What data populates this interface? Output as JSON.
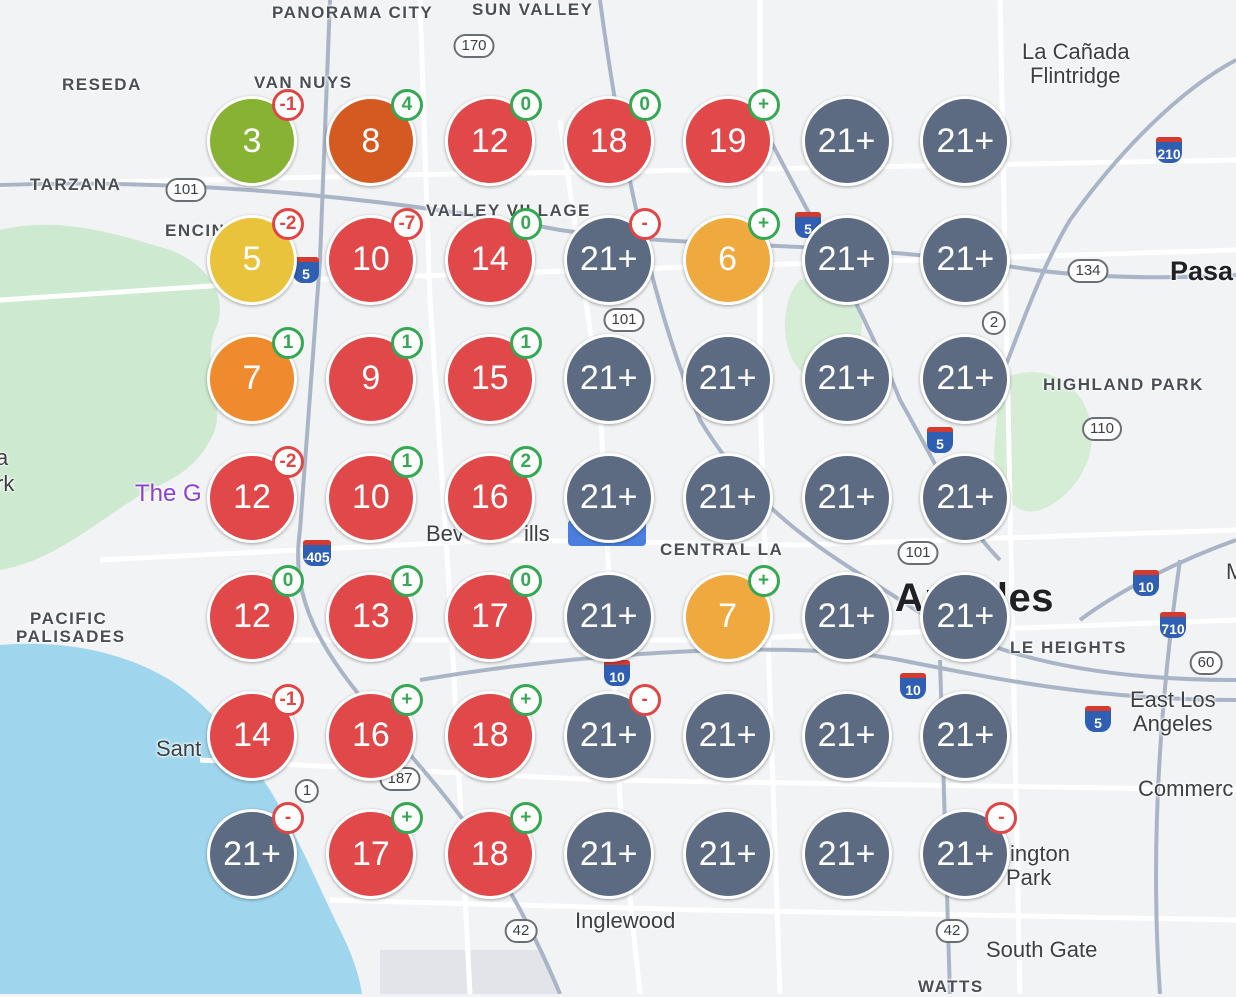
{
  "colors": {
    "water": "#9fd6ee",
    "park": "#cde9cf",
    "green": "#88b233",
    "dark_orange": "#d45a21",
    "red": "#e0484a",
    "yellow": "#e8c33b",
    "orange": "#f0a93e",
    "deep_orange": "#ef8a2e",
    "slate": "#5d6b82",
    "badge_red": "#e04646",
    "badge_green": "#34a853"
  },
  "place_labels": {
    "panorama_city": "PANORAMA CITY",
    "sun_valley": "SUN VALLEY",
    "reseda": "RESEDA",
    "van_nuys": "VAN NUYS",
    "tarzana": "TARZANA",
    "encino": "ENCIN",
    "la_canada": "La Cañada",
    "flintridge": "Flintridge",
    "valley_village": "VALLEY VILLAGE",
    "pasadena": "Pasa",
    "highland_park": "HIGHLAND PARK",
    "the_getty": "The G",
    "beverly_hills": "Bev",
    "hills": "ills",
    "central_la": "CENTRAL LA",
    "los_angeles": "s Angeles",
    "pacific": "PACIFIC",
    "palisades": "PALISADES",
    "le_heights": "LE HEIGHTS",
    "east_los": "East Los",
    "angeles": "Angeles",
    "santa": "Sant",
    "commerce": "Commerc",
    "inglewood": "Inglewood",
    "ington": "ington",
    "park": "Park",
    "south_gate": "South Gate",
    "watts": "WATTS",
    "edge_left_1": "a",
    "edge_left_2": "rk",
    "edge_right_1": "M"
  },
  "route_shields": {
    "state": [
      "170",
      "101",
      "101",
      "134",
      "2",
      "110",
      "101",
      "60",
      "1",
      "187",
      "42",
      "42"
    ],
    "interstate": [
      "5",
      "5",
      "405",
      "5",
      "405",
      "10",
      "10",
      "10",
      "710",
      "5",
      "210"
    ]
  },
  "clusters": [
    [
      {
        "count": "3",
        "color": "green",
        "badge": "-1",
        "badge_color": "badge_red"
      },
      {
        "count": "8",
        "color": "dark_orange",
        "badge": "4",
        "badge_color": "badge_green"
      },
      {
        "count": "12",
        "color": "red",
        "badge": "0",
        "badge_color": "badge_green"
      },
      {
        "count": "18",
        "color": "red",
        "badge": "0",
        "badge_color": "badge_green"
      },
      {
        "count": "19",
        "color": "red",
        "badge": "+",
        "badge_color": "badge_green"
      },
      {
        "count": "21+",
        "color": "slate",
        "badge": "",
        "badge_color": ""
      },
      {
        "count": "21+",
        "color": "slate",
        "badge": "",
        "badge_color": ""
      }
    ],
    [
      {
        "count": "5",
        "color": "yellow",
        "badge": "-2",
        "badge_color": "badge_red"
      },
      {
        "count": "10",
        "color": "red",
        "badge": "-7",
        "badge_color": "badge_red"
      },
      {
        "count": "14",
        "color": "red",
        "badge": "0",
        "badge_color": "badge_green"
      },
      {
        "count": "21+",
        "color": "slate",
        "badge": "-",
        "badge_color": "badge_red"
      },
      {
        "count": "6",
        "color": "orange",
        "badge": "+",
        "badge_color": "badge_green"
      },
      {
        "count": "21+",
        "color": "slate",
        "badge": "",
        "badge_color": ""
      },
      {
        "count": "21+",
        "color": "slate",
        "badge": "",
        "badge_color": ""
      }
    ],
    [
      {
        "count": "7",
        "color": "deep_orange",
        "badge": "1",
        "badge_color": "badge_green"
      },
      {
        "count": "9",
        "color": "red",
        "badge": "1",
        "badge_color": "badge_green"
      },
      {
        "count": "15",
        "color": "red",
        "badge": "1",
        "badge_color": "badge_green"
      },
      {
        "count": "21+",
        "color": "slate",
        "badge": "",
        "badge_color": ""
      },
      {
        "count": "21+",
        "color": "slate",
        "badge": "",
        "badge_color": ""
      },
      {
        "count": "21+",
        "color": "slate",
        "badge": "",
        "badge_color": ""
      },
      {
        "count": "21+",
        "color": "slate",
        "badge": "",
        "badge_color": ""
      }
    ],
    [
      {
        "count": "12",
        "color": "red",
        "badge": "-2",
        "badge_color": "badge_red"
      },
      {
        "count": "10",
        "color": "red",
        "badge": "1",
        "badge_color": "badge_green"
      },
      {
        "count": "16",
        "color": "red",
        "badge": "2",
        "badge_color": "badge_green"
      },
      {
        "count": "21+",
        "color": "slate",
        "badge": "",
        "badge_color": ""
      },
      {
        "count": "21+",
        "color": "slate",
        "badge": "",
        "badge_color": ""
      },
      {
        "count": "21+",
        "color": "slate",
        "badge": "",
        "badge_color": ""
      },
      {
        "count": "21+",
        "color": "slate",
        "badge": "",
        "badge_color": ""
      }
    ],
    [
      {
        "count": "12",
        "color": "red",
        "badge": "0",
        "badge_color": "badge_green"
      },
      {
        "count": "13",
        "color": "red",
        "badge": "1",
        "badge_color": "badge_green"
      },
      {
        "count": "17",
        "color": "red",
        "badge": "0",
        "badge_color": "badge_green"
      },
      {
        "count": "21+",
        "color": "slate",
        "badge": "",
        "badge_color": ""
      },
      {
        "count": "7",
        "color": "orange",
        "badge": "+",
        "badge_color": "badge_green"
      },
      {
        "count": "21+",
        "color": "slate",
        "badge": "",
        "badge_color": ""
      },
      {
        "count": "21+",
        "color": "slate",
        "badge": "",
        "badge_color": ""
      }
    ],
    [
      {
        "count": "14",
        "color": "red",
        "badge": "-1",
        "badge_color": "badge_red"
      },
      {
        "count": "16",
        "color": "red",
        "badge": "+",
        "badge_color": "badge_green"
      },
      {
        "count": "18",
        "color": "red",
        "badge": "+",
        "badge_color": "badge_green"
      },
      {
        "count": "21+",
        "color": "slate",
        "badge": "-",
        "badge_color": "badge_red"
      },
      {
        "count": "21+",
        "color": "slate",
        "badge": "",
        "badge_color": ""
      },
      {
        "count": "21+",
        "color": "slate",
        "badge": "",
        "badge_color": ""
      },
      {
        "count": "21+",
        "color": "slate",
        "badge": "",
        "badge_color": ""
      }
    ],
    [
      {
        "count": "21+",
        "color": "slate",
        "badge": "-",
        "badge_color": "badge_red"
      },
      {
        "count": "17",
        "color": "red",
        "badge": "+",
        "badge_color": "badge_green"
      },
      {
        "count": "18",
        "color": "red",
        "badge": "+",
        "badge_color": "badge_green"
      },
      {
        "count": "21+",
        "color": "slate",
        "badge": "",
        "badge_color": ""
      },
      {
        "count": "21+",
        "color": "slate",
        "badge": "",
        "badge_color": ""
      },
      {
        "count": "21+",
        "color": "slate",
        "badge": "",
        "badge_color": ""
      },
      {
        "count": "21+",
        "color": "slate",
        "badge": "-",
        "badge_color": "badge_red"
      }
    ]
  ]
}
